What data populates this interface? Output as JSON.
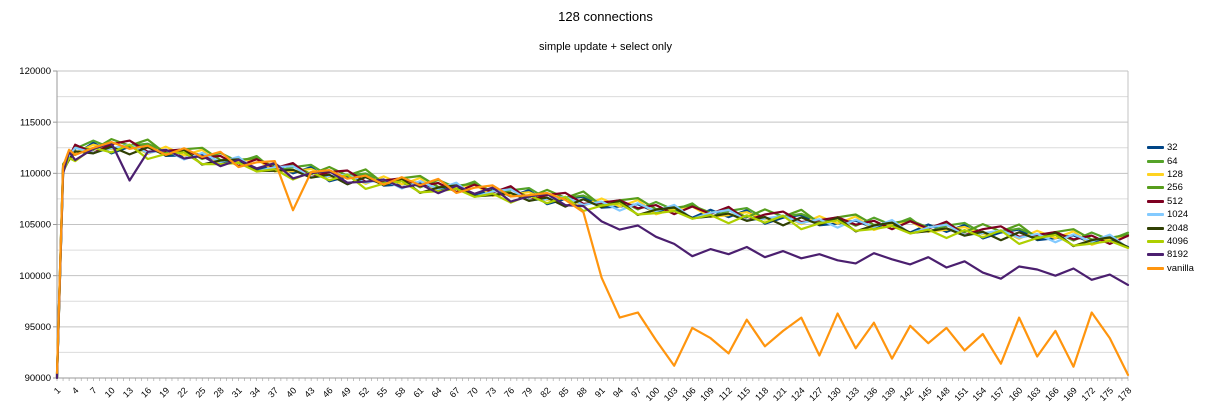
{
  "chart_data": {
    "type": "line",
    "title": "128 connections",
    "subtitle": "simple update + select only",
    "xlabel": "",
    "ylabel": "",
    "xlim": [
      1,
      178
    ],
    "ylim": [
      90000,
      120000
    ],
    "y_major_step": 5000,
    "y_minor_step": 2500,
    "grid": true,
    "legend_position": "right",
    "y_tick_labels": [
      90000,
      95000,
      100000,
      105000,
      110000,
      115000,
      120000
    ],
    "x_tick_labels": [
      1,
      4,
      7,
      10,
      13,
      16,
      19,
      22,
      25,
      28,
      31,
      34,
      37,
      40,
      43,
      46,
      49,
      52,
      55,
      58,
      61,
      64,
      67,
      70,
      73,
      76,
      79,
      82,
      85,
      88,
      91,
      94,
      97,
      100,
      103,
      106,
      109,
      112,
      115,
      118,
      121,
      124,
      127,
      130,
      133,
      136,
      139,
      142,
      145,
      148,
      151,
      154,
      157,
      160,
      163,
      166,
      169,
      172,
      175,
      178
    ],
    "x": [
      1,
      2,
      3,
      4,
      7,
      10,
      13,
      16,
      19,
      22,
      25,
      28,
      31,
      34,
      37,
      40,
      43,
      46,
      49,
      52,
      55,
      58,
      61,
      64,
      67,
      70,
      73,
      76,
      79,
      82,
      85,
      88,
      91,
      94,
      97,
      100,
      103,
      106,
      109,
      112,
      115,
      118,
      121,
      124,
      127,
      130,
      133,
      136,
      139,
      142,
      145,
      148,
      151,
      154,
      157,
      160,
      163,
      166,
      169,
      172,
      175,
      178
    ],
    "series": [
      {
        "name": "32",
        "color": "#004586",
        "values": [
          90100,
          110500,
          112000,
          111800,
          113000,
          111950,
          112600,
          112800,
          111700,
          111750,
          111900,
          111000,
          111220,
          110280,
          110900,
          110000,
          110620,
          109220,
          109680,
          109880,
          108800,
          108920,
          109140,
          108360,
          108680,
          107800,
          108520,
          107740,
          108360,
          106980,
          107500,
          107720,
          106640,
          106760,
          106980,
          106200,
          106520,
          105660,
          106440,
          105720,
          106400,
          105080,
          105660,
          105940,
          104920,
          105100,
          105380,
          104660,
          105040,
          104220,
          105000,
          104280,
          104960,
          103640,
          104220,
          104500,
          103480,
          103660,
          103940,
          103220,
          103600,
          102800
        ]
      },
      {
        "name": "64",
        "color": "#55A329",
        "values": [
          90300,
          110800,
          111300,
          112400,
          113200,
          112450,
          112700,
          112900,
          112100,
          112350,
          111400,
          112000,
          111120,
          111680,
          110200,
          110600,
          110820,
          109720,
          109780,
          109980,
          109200,
          109520,
          108640,
          109360,
          108580,
          109200,
          107820,
          108340,
          108560,
          107480,
          107600,
          107820,
          107040,
          107360,
          106480,
          107200,
          106420,
          107060,
          105740,
          106320,
          106600,
          105580,
          105760,
          106040,
          105320,
          105700,
          104880,
          105660,
          104940,
          105620,
          104300,
          104880,
          105160,
          104140,
          104320,
          104600,
          103880,
          104260,
          103440,
          104220,
          103500,
          104200
        ]
      },
      {
        "name": "128",
        "color": "#FFD320",
        "values": [
          90200,
          110400,
          111300,
          112000,
          112800,
          112350,
          112800,
          111900,
          112600,
          111750,
          112300,
          110800,
          111220,
          111380,
          110200,
          110200,
          110420,
          109620,
          109880,
          108980,
          109700,
          108920,
          109540,
          108160,
          108680,
          108900,
          107820,
          107940,
          108160,
          107380,
          107700,
          106820,
          107540,
          106760,
          107380,
          106000,
          106520,
          106760,
          105740,
          105920,
          106200,
          105480,
          105860,
          105040,
          105820,
          105100,
          105780,
          104460,
          105040,
          105320,
          104300,
          104480,
          104760,
          104040,
          104420,
          103600,
          104380,
          103660,
          104340,
          103020,
          103600,
          103900
        ]
      },
      {
        "name": "256",
        "color": "#579D1C",
        "values": [
          90400,
          110900,
          111700,
          112600,
          112300,
          113350,
          112700,
          113300,
          111900,
          112350,
          112500,
          111300,
          111320,
          111480,
          110600,
          110800,
          109920,
          110620,
          109780,
          110380,
          109000,
          109520,
          109740,
          108660,
          108780,
          109000,
          108220,
          108540,
          107660,
          108380,
          107600,
          108220,
          106840,
          107360,
          107580,
          106500,
          106620,
          106860,
          106140,
          106520,
          105700,
          106480,
          105760,
          106440,
          105120,
          105700,
          105980,
          104960,
          105140,
          105420,
          104700,
          105080,
          104260,
          105040,
          104320,
          105000,
          103680,
          104260,
          104540,
          103520,
          103700,
          104000
        ]
      },
      {
        "name": "512",
        "color": "#7E0021",
        "values": [
          90250,
          110600,
          111600,
          112800,
          112000,
          112850,
          113200,
          112100,
          112200,
          112350,
          111500,
          111700,
          110720,
          111380,
          110500,
          111000,
          109620,
          110120,
          110280,
          109180,
          109300,
          109520,
          108740,
          109060,
          108180,
          108900,
          108120,
          108740,
          107360,
          107880,
          108100,
          107020,
          107140,
          107360,
          106580,
          106900,
          106020,
          106760,
          106040,
          106720,
          105400,
          105980,
          106260,
          105240,
          105420,
          105700,
          104980,
          105360,
          104540,
          105320,
          104600,
          105280,
          103960,
          104540,
          104820,
          103800,
          103980,
          104260,
          103540,
          103920,
          103100,
          103900
        ]
      },
      {
        "name": "1024",
        "color": "#83CAFF",
        "values": [
          90150,
          110300,
          111700,
          112500,
          112000,
          112450,
          112800,
          112000,
          112300,
          111350,
          112000,
          111100,
          111620,
          110180,
          110600,
          110700,
          109620,
          109720,
          109880,
          109080,
          109400,
          108520,
          109240,
          108460,
          109080,
          107700,
          108220,
          108440,
          107360,
          107480,
          107700,
          106920,
          107240,
          106360,
          107080,
          106300,
          106920,
          105560,
          106140,
          106420,
          105400,
          105580,
          105860,
          105140,
          105520,
          104700,
          105480,
          104760,
          105440,
          104120,
          104700,
          104980,
          103960,
          104140,
          104420,
          103700,
          104080,
          103260,
          104040,
          103320,
          104000,
          102700
        ]
      },
      {
        "name": "2048",
        "color": "#314004",
        "values": [
          90050,
          110200,
          111350,
          112150,
          111950,
          112600,
          111850,
          112550,
          111750,
          112300,
          110850,
          111250,
          111370,
          110230,
          110250,
          110350,
          109570,
          109870,
          108930,
          109630,
          108850,
          109470,
          108090,
          108610,
          108830,
          107750,
          107870,
          108090,
          107310,
          107630,
          106750,
          107470,
          106690,
          107310,
          105930,
          106450,
          106670,
          105610,
          105790,
          106070,
          105350,
          105730,
          104910,
          105690,
          104970,
          105650,
          104330,
          104910,
          105190,
          104170,
          104350,
          104630,
          103910,
          104290,
          103470,
          104250,
          103530,
          104210,
          102890,
          103470,
          103750,
          102750
        ]
      },
      {
        "name": "4096",
        "color": "#AECF00",
        "values": [
          90000,
          110100,
          111500,
          111200,
          112500,
          112050,
          112800,
          111400,
          111900,
          112050,
          110900,
          110900,
          111020,
          110180,
          110400,
          109400,
          110120,
          109320,
          109880,
          108480,
          109000,
          109220,
          108140,
          108260,
          108480,
          107700,
          108020,
          107140,
          107860,
          107080,
          107700,
          106320,
          106840,
          107060,
          105980,
          106100,
          106320,
          105560,
          105940,
          105120,
          105900,
          105180,
          105860,
          104540,
          105120,
          105400,
          104380,
          104560,
          104840,
          104120,
          104500,
          103680,
          104460,
          103740,
          104420,
          103100,
          103680,
          103960,
          102940,
          103120,
          103400,
          102700
        ]
      },
      {
        "name": "8192",
        "color": "#4B1F6F",
        "values": [
          90000,
          110000,
          112100,
          111300,
          112400,
          112950,
          109300,
          112100,
          112300,
          111450,
          111700,
          110700,
          111320,
          110480,
          111000,
          109500,
          110020,
          110220,
          109080,
          109180,
          109400,
          108620,
          108940,
          108060,
          108780,
          108000,
          108620,
          107240,
          107760,
          107980,
          106900,
          106800,
          105300,
          104500,
          104900,
          103800,
          103100,
          101900,
          102600,
          102100,
          102800,
          101800,
          102400,
          101700,
          102100,
          101500,
          101200,
          102200,
          101600,
          101100,
          101800,
          100800,
          101400,
          100300,
          99700,
          100900,
          100600,
          100000,
          100700,
          99600,
          100100,
          99100
        ]
      },
      {
        "name": "vanilla",
        "color": "#FF950E",
        "values": [
          90500,
          110700,
          112300,
          111800,
          112500,
          113050,
          112400,
          112700,
          111800,
          112450,
          111600,
          112100,
          110620,
          111080,
          111200,
          106400,
          110120,
          110320,
          109480,
          109780,
          108900,
          109620,
          108840,
          109460,
          108080,
          108600,
          108820,
          107740,
          107860,
          108080,
          107400,
          106200,
          99800,
          95900,
          96400,
          93700,
          91200,
          94900,
          93900,
          92400,
          95700,
          93100,
          94600,
          95900,
          92200,
          96300,
          92900,
          95400,
          91900,
          95100,
          93400,
          94900,
          92700,
          94300,
          91400,
          95900,
          92100,
          94600,
          91100,
          96400,
          93900,
          90300
        ]
      }
    ]
  },
  "colors": {
    "grid_major": "#c3c3c3",
    "grid_minor": "#dcdcdc",
    "axis": "#9a9a9a",
    "text": "#000000",
    "background": "#ffffff"
  }
}
